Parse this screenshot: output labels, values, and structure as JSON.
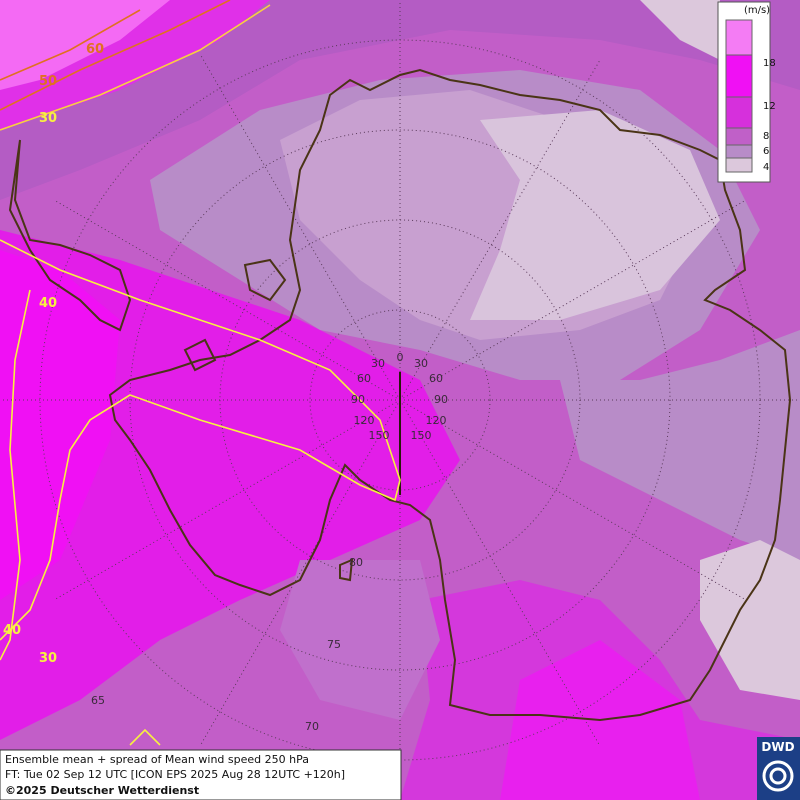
{
  "contour_labels": [
    60,
    50,
    30,
    40,
    40,
    30
  ],
  "graticule_labels": [
    0,
    30,
    30,
    60,
    60,
    90,
    90,
    120,
    120,
    150,
    150,
    80,
    75,
    70,
    65
  ],
  "legend": {
    "unit": "(m/s)",
    "levels": [
      18,
      12,
      8,
      6,
      4
    ]
  },
  "footer": {
    "line1": "Ensemble mean + spread of Mean wind speed 250 hPa",
    "line2": "FT: Tue 02 Sep 12 UTC [ICON EPS 2025 Aug 28 12UTC +120h]",
    "line3": "©2025 Deutscher Wetterdienst"
  },
  "logo": "DWD"
}
